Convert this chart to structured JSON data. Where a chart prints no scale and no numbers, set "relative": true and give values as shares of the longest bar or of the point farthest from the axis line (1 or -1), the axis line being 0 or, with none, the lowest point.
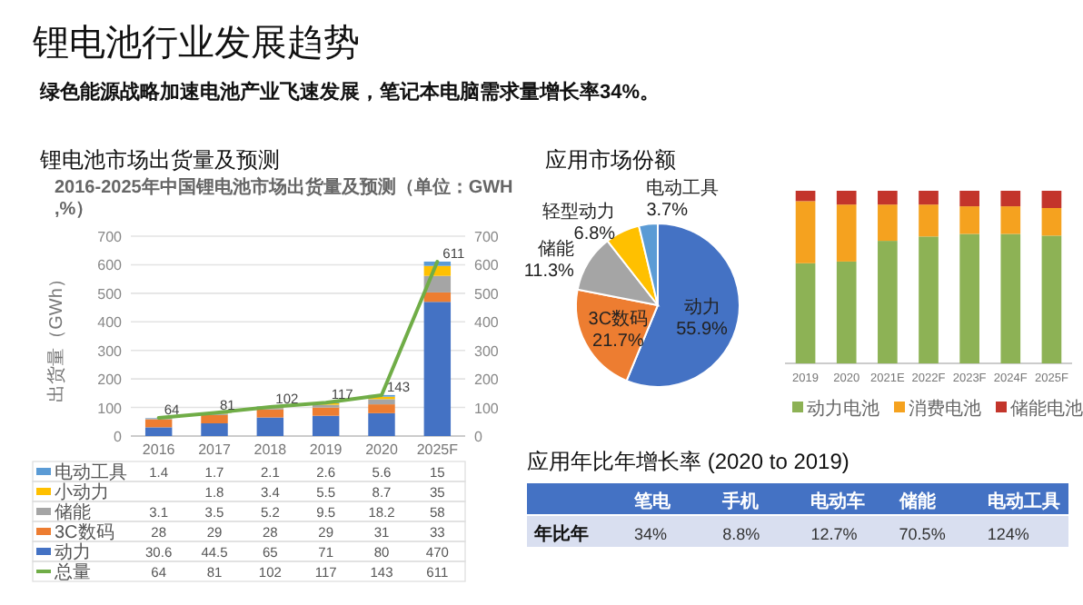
{
  "chart_data": [
    {
      "type": "other",
      "title": "锂电池行业发展趋势",
      "subtitle": "绿色能源战略加速电池产业飞速发展，笔记本电脑需求量增长率34%。"
    },
    {
      "type": "bar",
      "stacked": true,
      "legend": "bottom",
      "title": "锂电池市场出货量及预测",
      "subtitle": "2016-2025年中国锂电池市场出货量及预测（单位：GWH,%）",
      "ylabel": "出货量（GWh）",
      "categories": [
        "2016",
        "2017",
        "2018",
        "2019",
        "2020",
        "2025F"
      ],
      "ylim": [
        0,
        700
      ],
      "yticks": [
        0,
        100,
        200,
        300,
        400,
        500,
        600,
        700
      ],
      "y2lim": [
        0,
        700
      ],
      "y2ticks": [
        0,
        100,
        200,
        300,
        400,
        500,
        600,
        700
      ],
      "grid": "y",
      "data_labels": true,
      "series": [
        {
          "name": "动力",
          "color": "#4472c4",
          "values": [
            30.6,
            44.5,
            65,
            71,
            80,
            470
          ]
        },
        {
          "name": "3C数码",
          "color": "#ed7d31",
          "values": [
            28,
            29,
            28,
            29,
            31,
            33
          ]
        },
        {
          "name": "储能",
          "color": "#a5a5a5",
          "values": [
            3.1,
            3.5,
            5.2,
            9.5,
            18.2,
            58
          ]
        },
        {
          "name": "小动力",
          "color": "#ffc000",
          "values": [
            null,
            1.8,
            3.4,
            5.5,
            8.7,
            35
          ]
        },
        {
          "name": "电动工具",
          "color": "#5b9bd5",
          "values": [
            1.4,
            1.7,
            2.1,
            2.6,
            5.6,
            15
          ]
        },
        {
          "name": "总量",
          "color": "#70ad47",
          "type": "line",
          "axis": "y2",
          "values": [
            64,
            81,
            102,
            117,
            143,
            611
          ],
          "value_labels": [
            "64",
            "81",
            "102",
            "117",
            "143",
            "611"
          ]
        }
      ]
    },
    {
      "type": "pie",
      "title": "应用市场份额",
      "categories": [
        "动力",
        "3C数码",
        "储能",
        "轻型动力",
        "电动工具"
      ],
      "values": [
        55.9,
        21.7,
        11.3,
        6.8,
        3.7
      ],
      "colors": [
        "#4472c4",
        "#ed7d31",
        "#a5a5a5",
        "#ffc000",
        "#5b9bd5"
      ],
      "data_labels": true,
      "value_labels": [
        "55.9%",
        "21.7%",
        "11.3%",
        "6.8%",
        "3.7%"
      ]
    },
    {
      "type": "bar",
      "stacked": true,
      "relative": true,
      "legend": "bottom",
      "categories": [
        "2019",
        "2020",
        "2021E",
        "2022F",
        "2023F",
        "2024F",
        "2025F"
      ],
      "series": [
        {
          "name": "动力电池",
          "color": "#8db255",
          "values": [
            0.58,
            0.59,
            0.71,
            0.735,
            0.75,
            0.75,
            0.74
          ]
        },
        {
          "name": "消费电池",
          "color": "#f5a21f",
          "values": [
            0.36,
            0.33,
            0.21,
            0.185,
            0.16,
            0.16,
            0.16
          ]
        },
        {
          "name": "储能电池",
          "color": "#c3352b",
          "values": [
            0.06,
            0.08,
            0.08,
            0.08,
            0.09,
            0.09,
            0.1
          ]
        }
      ]
    },
    {
      "type": "other",
      "title": "应用年比年增长率 (2020 to 2019)",
      "ylabel": "年比年",
      "categories": [
        "笔电",
        "手机",
        "电动车",
        "储能",
        "电动工具"
      ],
      "values": [
        34,
        8.8,
        12.7,
        70.5,
        124
      ],
      "value_labels": [
        "34%",
        "8.8%",
        "12.7%",
        "70.5%",
        "124%"
      ]
    }
  ]
}
